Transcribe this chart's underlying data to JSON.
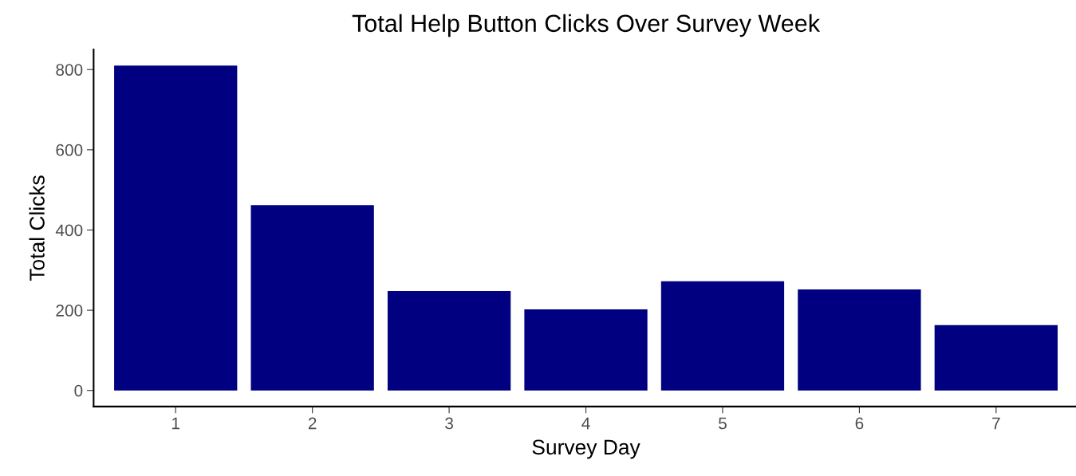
{
  "chart_data": {
    "type": "bar",
    "title": "Total Help Button Clicks Over Survey Week",
    "xlabel": "Survey Day",
    "ylabel": "Total Clicks",
    "categories": [
      "1",
      "2",
      "3",
      "4",
      "5",
      "6",
      "7"
    ],
    "values": [
      810,
      462,
      248,
      202,
      272,
      252,
      163
    ],
    "color": "#000080",
    "ylim": [
      -40,
      850
    ],
    "yticks": [
      0,
      200,
      400,
      600,
      800
    ],
    "grid": false
  }
}
